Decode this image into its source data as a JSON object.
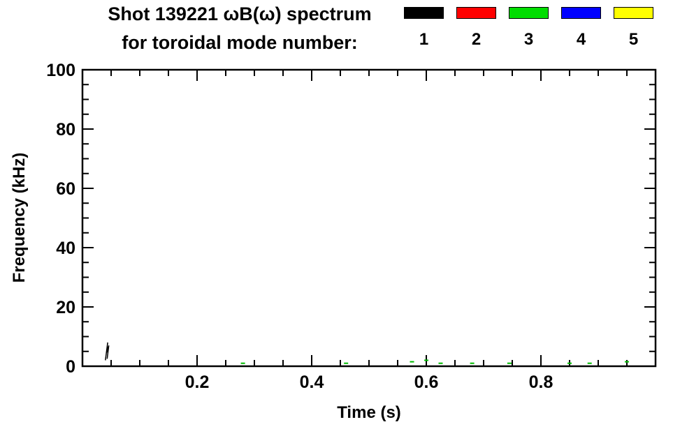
{
  "header": {
    "title_line1": "Shot 139221 ωB(ω) spectrum",
    "title_line2": "for toroidal mode number:"
  },
  "chart_data": {
    "type": "scatter",
    "title": "Shot 139221 ωB(ω) spectrum",
    "subtitle": "for toroidal mode number:",
    "xlabel": "Time (s)",
    "ylabel": "Frequency (kHz)",
    "xlim": [
      0.0,
      1.0
    ],
    "ylim": [
      0,
      100
    ],
    "x_ticks": [
      0.2,
      0.4,
      0.6,
      0.8
    ],
    "x_minor_tick_step": 0.05,
    "y_ticks": [
      0,
      20,
      40,
      60,
      80,
      100
    ],
    "y_minor_tick_step": 5,
    "grid": false,
    "legend_position": "top-right above plot",
    "legend_entries": [
      {
        "label": "1",
        "color": "#000000"
      },
      {
        "label": "2",
        "color": "#ff0000"
      },
      {
        "label": "3",
        "color": "#00dd00"
      },
      {
        "label": "4",
        "color": "#0000ff"
      },
      {
        "label": "5",
        "color": "#ffff00"
      }
    ],
    "series": [
      {
        "name": "mode-1",
        "color": "#000000",
        "style": "polyline",
        "points": [
          [
            0.04,
            2.0
          ],
          [
            0.044,
            8.0
          ],
          [
            0.042,
            4.5
          ],
          [
            0.046,
            7.0
          ],
          [
            0.043,
            2.5
          ]
        ]
      },
      {
        "name": "mode-3",
        "color": "#00bb00",
        "style": "dash",
        "points": [
          [
            0.28,
            1.0
          ],
          [
            0.46,
            1.0
          ],
          [
            0.575,
            1.5
          ],
          [
            0.6,
            2.0
          ],
          [
            0.625,
            1.0
          ],
          [
            0.68,
            1.0
          ],
          [
            0.745,
            1.0
          ],
          [
            0.85,
            1.0
          ],
          [
            0.885,
            1.0
          ],
          [
            0.95,
            1.5
          ]
        ]
      }
    ]
  }
}
